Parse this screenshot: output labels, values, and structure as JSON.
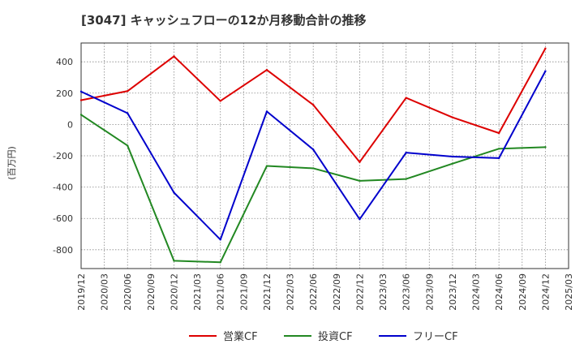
{
  "chart_data": {
    "type": "line",
    "title": "[3047]  キャッシュフローの12か月移動合計の推移",
    "xlabel": "",
    "ylabel": "(百万円)",
    "ylim": [
      -920,
      520
    ],
    "yticks": [
      -800,
      -600,
      -400,
      -200,
      0,
      200,
      400
    ],
    "x": [
      "2019/12",
      "2020/03",
      "2020/06",
      "2020/09",
      "2020/12",
      "2021/03",
      "2021/06",
      "2021/09",
      "2021/12",
      "2022/03",
      "2022/06",
      "2022/09",
      "2022/12",
      "2023/03",
      "2023/06",
      "2023/09",
      "2023/12",
      "2024/03",
      "2024/06",
      "2024/09",
      "2024/12",
      "2025/03"
    ],
    "grid": true,
    "legend_position": "bottom",
    "series": [
      {
        "name": "営業CF",
        "color": "#dd0000",
        "points": [
          [
            "2019/12",
            155
          ],
          [
            "2020/06",
            213
          ],
          [
            "2020/12",
            435
          ],
          [
            "2021/06",
            150
          ],
          [
            "2021/12",
            348
          ],
          [
            "2022/06",
            125
          ],
          [
            "2022/12",
            -240
          ],
          [
            "2023/06",
            170
          ],
          [
            "2023/12",
            45
          ],
          [
            "2024/06",
            -55
          ],
          [
            "2024/12",
            485
          ]
        ]
      },
      {
        "name": "投資CF",
        "color": "#228822",
        "points": [
          [
            "2019/12",
            62
          ],
          [
            "2020/06",
            -135
          ],
          [
            "2020/12",
            -870
          ],
          [
            "2021/06",
            -880
          ],
          [
            "2021/12",
            -265
          ],
          [
            "2022/06",
            -280
          ],
          [
            "2022/12",
            -360
          ],
          [
            "2023/06",
            -348
          ],
          [
            "2023/12",
            -250
          ],
          [
            "2024/06",
            -155
          ],
          [
            "2024/12",
            -145
          ]
        ]
      },
      {
        "name": "フリーCF",
        "color": "#0000cc",
        "points": [
          [
            "2019/12",
            210
          ],
          [
            "2020/06",
            72
          ],
          [
            "2020/12",
            -435
          ],
          [
            "2021/06",
            -735
          ],
          [
            "2021/12",
            83
          ],
          [
            "2022/06",
            -160
          ],
          [
            "2022/12",
            -605
          ],
          [
            "2023/06",
            -180
          ],
          [
            "2023/12",
            -205
          ],
          [
            "2024/06",
            -215
          ],
          [
            "2024/12",
            340
          ]
        ]
      }
    ]
  }
}
